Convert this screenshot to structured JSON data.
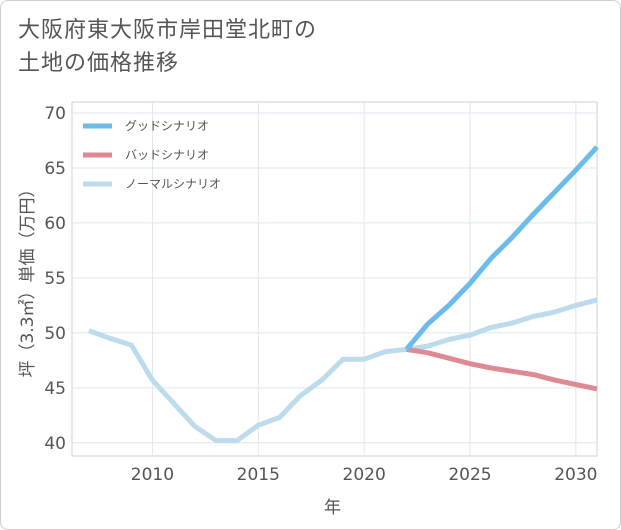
{
  "title_line1": "大阪府東大阪市岸田堂北町の",
  "title_line2": "土地の価格推移",
  "chart_data": {
    "type": "line",
    "title": "大阪府東大阪市岸田堂北町の土地の価格推移",
    "xlabel": "年",
    "ylabel": "坪（3.3㎡）単価（万円）",
    "xlim": [
      2006.2,
      2031
    ],
    "ylim": [
      38.8,
      71
    ],
    "x_ticks": [
      2010,
      2015,
      2020,
      2025,
      2030
    ],
    "y_ticks": [
      40,
      45,
      50,
      55,
      60,
      65,
      70
    ],
    "grid": true,
    "legend_position": "top-left",
    "series": [
      {
        "name": "グッドシナリオ",
        "color": "#6bbcea",
        "x": [
          2022,
          2023,
          2024,
          2025,
          2026,
          2027,
          2028,
          2029,
          2030,
          2031
        ],
        "y": [
          48.5,
          50.8,
          52.5,
          54.5,
          56.8,
          58.7,
          60.8,
          62.8,
          64.8,
          66.9
        ]
      },
      {
        "name": "バッドシナリオ",
        "color": "#de8a94",
        "x": [
          2022,
          2023,
          2024,
          2025,
          2026,
          2027,
          2028,
          2029,
          2030,
          2031
        ],
        "y": [
          48.5,
          48.2,
          47.7,
          47.2,
          46.8,
          46.5,
          46.2,
          45.7,
          45.3,
          44.9
        ]
      },
      {
        "name": "ノーマルシナリオ",
        "color": "#bcdcee",
        "x": [
          2007,
          2008,
          2009,
          2010,
          2011,
          2012,
          2013,
          2014,
          2015,
          2016,
          2017,
          2018,
          2019,
          2020,
          2021,
          2022,
          2023,
          2024,
          2025,
          2026,
          2027,
          2028,
          2029,
          2030,
          2031
        ],
        "y": [
          50.2,
          49.5,
          48.9,
          45.7,
          43.6,
          41.5,
          40.2,
          40.2,
          41.6,
          42.3,
          44.3,
          45.7,
          47.6,
          47.6,
          48.3,
          48.5,
          48.8,
          49.4,
          49.8,
          50.5,
          50.9,
          51.5,
          51.9,
          52.5,
          53.0
        ]
      }
    ]
  }
}
